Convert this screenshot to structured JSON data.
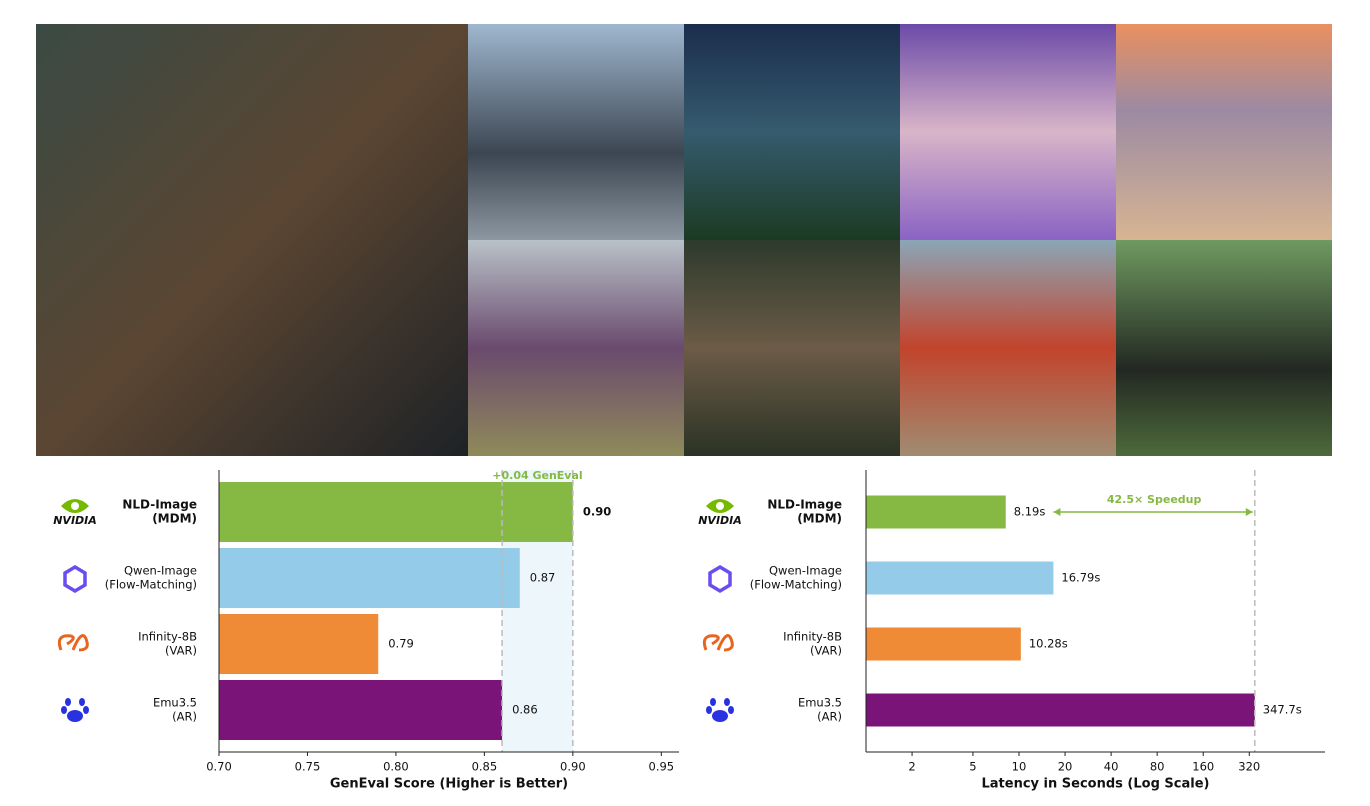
{
  "chart_data": [
    {
      "type": "bar",
      "xscale": "linear",
      "categories": [
        [
          "NLD-Image",
          "(MDM)"
        ],
        [
          "Qwen-Image",
          "(Flow-Matching)"
        ],
        [
          "Infinity-8B",
          "(VAR)"
        ],
        [
          "Emu3.5",
          "(AR)"
        ]
      ],
      "logo_labels": [
        "NVIDIA",
        null,
        null,
        null
      ],
      "values": [
        0.9,
        0.87,
        0.79,
        0.86
      ],
      "value_labels": [
        "0.90",
        "0.87",
        "0.79",
        "0.86"
      ],
      "colors": [
        "#86b943",
        "#94cbe8",
        "#ef8a36",
        "#7a1478"
      ],
      "xlim": [
        0.7,
        0.96
      ],
      "xticks": [
        {
          "value": 0.7,
          "label": "0.70"
        },
        {
          "value": 0.75,
          "label": "0.75"
        },
        {
          "value": 0.8,
          "label": "0.80"
        },
        {
          "value": 0.85,
          "label": "0.85"
        },
        {
          "value": 0.9,
          "label": "0.90"
        },
        {
          "value": 0.95,
          "label": "0.95"
        }
      ],
      "xlabel": "GenEval Score (Higher is Better)",
      "annotation": "+0.04 GenEval"
    },
    {
      "type": "bar",
      "xscale": "log",
      "categories": [
        [
          "NLD-Image",
          "(MDM)"
        ],
        [
          "Qwen-Image",
          "(Flow-Matching)"
        ],
        [
          "Infinity-8B",
          "(VAR)"
        ],
        [
          "Emu3.5",
          "(AR)"
        ]
      ],
      "logo_labels": [
        "NVIDIA",
        null,
        null,
        null
      ],
      "values": [
        8.19,
        16.79,
        10.28,
        347.7
      ],
      "value_labels": [
        "8.19s",
        "16.79s",
        "10.28s",
        "347.7s"
      ],
      "colors": [
        "#86b943",
        "#94cbe8",
        "#ef8a36",
        "#7a1478"
      ],
      "xlim": [
        1,
        1000
      ],
      "xticks": [
        2,
        5,
        10,
        20,
        40,
        80,
        160,
        320
      ],
      "xlabel": "Latency in Seconds (Log Scale)",
      "annotation": "42.5× Speedup"
    }
  ]
}
